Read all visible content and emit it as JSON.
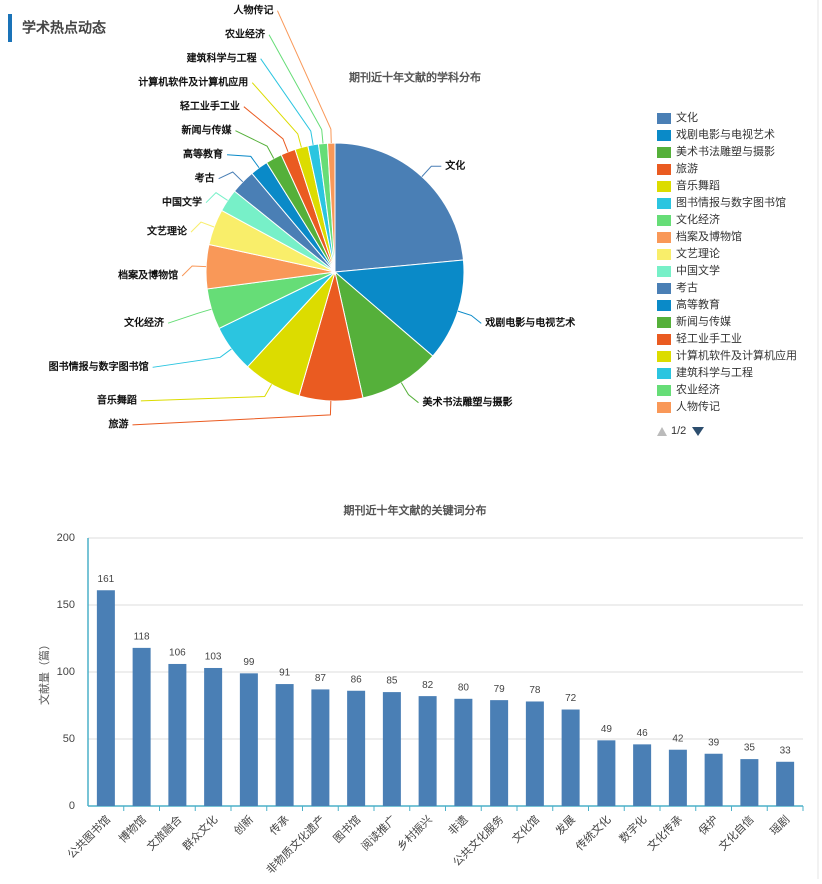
{
  "header": {
    "title": "学术热点动态"
  },
  "chart_data": [
    {
      "type": "pie",
      "title": "期刊近十年文献的学科分布",
      "categories": [
        "文化",
        "戏剧电影与电视艺术",
        "美术书法雕塑与摄影",
        "旅游",
        "音乐舞蹈",
        "图书情报与数字图书馆",
        "文化经济",
        "档案及博物馆",
        "文艺理论",
        "中国文学",
        "考古",
        "高等教育",
        "新闻与传媒",
        "轻工业手工业",
        "计算机软件及计算机应用",
        "建筑科学与工程",
        "农业经济",
        "人物传记"
      ],
      "values": [
        23,
        12.5,
        10,
        7.8,
        7.2,
        5.8,
        5,
        5.4,
        4.4,
        2.8,
        3,
        2.2,
        2,
        1.8,
        1.6,
        1.3,
        1.1,
        0.9
      ],
      "colors": [
        "#4a7fb5",
        "#0a8ac8",
        "#55b03a",
        "#ea5b21",
        "#dcdc00",
        "#2bc5e0",
        "#66dd77",
        "#f99858",
        "#f9ee6a",
        "#77f0c8",
        "#4a7fb5",
        "#0a8ac8",
        "#55b03a",
        "#ea5b21",
        "#dcdc00",
        "#2bc5e0",
        "#66dd77",
        "#f99858"
      ],
      "legend": "right",
      "legend_page": "1/2"
    },
    {
      "type": "bar",
      "title": "期刊近十年文献的关键词分布",
      "y_label": "文献量（篇）",
      "categories": [
        "公共图书馆",
        "博物馆",
        "文旅融合",
        "群众文化",
        "创新",
        "传承",
        "非物质文化遗产",
        "图书馆",
        "阅读推广",
        "乡村振兴",
        "非遗",
        "公共文化服务",
        "文化馆",
        "发展",
        "传统文化",
        "数字化",
        "文化传承",
        "保护",
        "文化自信",
        "瑶剧"
      ],
      "values": [
        161,
        118,
        106,
        103,
        99,
        91,
        87,
        86,
        85,
        82,
        80,
        79,
        78,
        72,
        49,
        46,
        42,
        39,
        35,
        33
      ],
      "color": "#4a7fb5",
      "ylim": [
        0,
        200
      ],
      "yticks": [
        0,
        50,
        100,
        150,
        200
      ],
      "grid": true
    }
  ]
}
